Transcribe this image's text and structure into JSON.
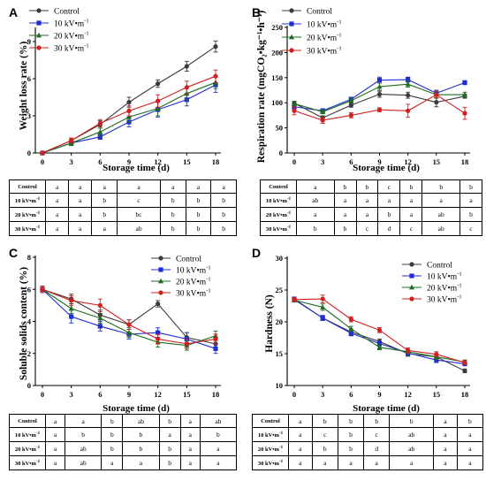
{
  "x": [
    "0",
    "3",
    "6",
    "9",
    "12",
    "15",
    "18"
  ],
  "xlabel": "Storage time (d)",
  "legend": [
    "Control",
    "10 kV•m",
    "20 kV•m",
    "30 kV•m"
  ],
  "legend_sup": "-1",
  "colors": {
    "control": "#3a3a3a",
    "kv10": "#1f2fcf",
    "kv20": "#1f6b1f",
    "kv30": "#d11f1f"
  },
  "row_labels": [
    "Control",
    "10 kV•m",
    "20 kV•m",
    "30 kV•m"
  ],
  "row_sup": "-1",
  "panels": [
    {
      "letter": "A",
      "ylabel": "Weight loss rate (%)",
      "yticks": [
        "0",
        "3",
        "6",
        "9"
      ],
      "letters": [
        [
          "a",
          "a",
          "a",
          "a",
          "a",
          "a",
          "a"
        ],
        [
          "a",
          "a",
          "b",
          "c",
          "b",
          "b",
          "b"
        ],
        [
          "a",
          "a",
          "b",
          "bc",
          "b",
          "b",
          "b"
        ],
        [
          "a",
          "a",
          "a",
          "ab",
          "b",
          "b",
          "b"
        ]
      ]
    },
    {
      "letter": "B",
      "ylabel": "Respiration rate (mgCO₂•kg⁻¹•h⁻¹)",
      "yticks": [
        "0",
        "50",
        "100",
        "150",
        "200",
        "250"
      ],
      "letters": [
        [
          "a",
          "b",
          "b",
          "c",
          "b",
          "b",
          "b"
        ],
        [
          "ab",
          "a",
          "a",
          "a",
          "a",
          "a",
          "a"
        ],
        [
          "a",
          "a",
          "a",
          "b",
          "a",
          "ab",
          "b"
        ],
        [
          "b",
          "b",
          "c",
          "d",
          "c",
          "ab",
          "c"
        ]
      ]
    },
    {
      "letter": "C",
      "ylabel": "Soluble solids content (%)",
      "yticks": [
        "0",
        "2",
        "4",
        "6",
        "8"
      ],
      "letters": [
        [
          "a",
          "a",
          "b",
          "ab",
          "b",
          "a",
          "ab"
        ],
        [
          "a",
          "b",
          "b",
          "b",
          "a",
          "a",
          "b"
        ],
        [
          "a",
          "ab",
          "b",
          "b",
          "b",
          "a",
          "a"
        ],
        [
          "a",
          "ab",
          "a",
          "a",
          "b",
          "a",
          "a"
        ]
      ]
    },
    {
      "letter": "D",
      "ylabel": "Hardness (N)",
      "yticks": [
        "10",
        "15",
        "20",
        "25",
        "30"
      ],
      "letters": [
        [
          "a",
          "b",
          "b",
          "b",
          "b",
          "a",
          "b"
        ],
        [
          "a",
          "c",
          "b",
          "c",
          "ab",
          "a",
          "a"
        ],
        [
          "a",
          "b",
          "b",
          "d",
          "ab",
          "a",
          "a"
        ],
        [
          "a",
          "a",
          "a",
          "a",
          "a",
          "a",
          "a"
        ]
      ]
    }
  ],
  "chart_data": [
    {
      "type": "line",
      "title": "",
      "xlabel": "Storage time (d)",
      "ylabel": "Weight loss rate (%)",
      "x": [
        0,
        3,
        6,
        9,
        12,
        15,
        18
      ],
      "ylim": [
        0,
        10
      ],
      "legend_position": "top-left",
      "series": [
        {
          "name": "Control",
          "values": [
            0,
            1.0,
            2.3,
            4.1,
            5.6,
            7.0,
            8.6
          ],
          "err": [
            0.1,
            0.2,
            0.3,
            0.4,
            0.3,
            0.4,
            0.45
          ]
        },
        {
          "name": "10 kV•m-1",
          "values": [
            0,
            0.8,
            1.3,
            2.5,
            3.5,
            4.3,
            5.5
          ],
          "err": [
            0.1,
            0.2,
            0.2,
            0.4,
            0.6,
            0.5,
            0.6
          ]
        },
        {
          "name": "20 kV•m-1",
          "values": [
            0,
            0.8,
            1.7,
            2.9,
            3.6,
            4.8,
            5.7
          ],
          "err": [
            0.1,
            0.2,
            0.3,
            0.4,
            0.6,
            0.5,
            0.5
          ]
        },
        {
          "name": "30 kV•m-1",
          "values": [
            0,
            1.0,
            2.4,
            3.4,
            4.2,
            5.3,
            6.2
          ],
          "err": [
            0.1,
            0.2,
            0.3,
            0.4,
            0.5,
            0.5,
            0.5
          ]
        }
      ]
    },
    {
      "type": "line",
      "title": "",
      "xlabel": "Storage time (d)",
      "ylabel": "Respiration rate (mgCO₂•kg⁻¹•h⁻¹)",
      "x": [
        0,
        3,
        6,
        9,
        12,
        15,
        18
      ],
      "ylim": [
        0,
        250
      ],
      "legend_position": "top-left",
      "series": [
        {
          "name": "Control",
          "values": [
            99,
            70,
            95,
            117,
            115,
            101,
            113
          ],
          "err": [
            4,
            4,
            4,
            6,
            6,
            9,
            4
          ]
        },
        {
          "name": "10 kV•m-1",
          "values": [
            92,
            84,
            107,
            145,
            146,
            119,
            140
          ],
          "err": [
            5,
            4,
            4,
            6,
            5,
            6,
            4
          ]
        },
        {
          "name": "20 kV•m-1",
          "values": [
            98,
            82,
            104,
            132,
            137,
            116,
            116
          ],
          "err": [
            5,
            4,
            4,
            7,
            6,
            7,
            5
          ]
        },
        {
          "name": "30 kV•m-1",
          "values": [
            84,
            65,
            75,
            86,
            84,
            116,
            79
          ],
          "err": [
            8,
            6,
            5,
            4,
            13,
            6,
            12
          ]
        }
      ]
    },
    {
      "type": "line",
      "title": "",
      "xlabel": "Storage time (d)",
      "ylabel": "Soluble solids content (%)",
      "x": [
        0,
        3,
        6,
        9,
        12,
        15,
        18
      ],
      "ylim": [
        0,
        8
      ],
      "legend_position": "top-right",
      "series": [
        {
          "name": "Control",
          "values": [
            6.0,
            5.4,
            4.4,
            3.8,
            5.1,
            3.0,
            2.6
          ],
          "err": [
            0.2,
            0.3,
            0.3,
            0.3,
            0.2,
            0.3,
            0.4
          ]
        },
        {
          "name": "10 kV•m-1",
          "values": [
            6.0,
            4.3,
            3.7,
            3.2,
            3.3,
            2.9,
            2.3
          ],
          "err": [
            0.2,
            0.4,
            0.3,
            0.3,
            0.3,
            0.4,
            0.3
          ]
        },
        {
          "name": "20 kV•m-1",
          "values": [
            6.0,
            4.8,
            4.2,
            3.3,
            2.7,
            2.5,
            3.1
          ],
          "err": [
            0.2,
            0.3,
            0.3,
            0.3,
            0.3,
            0.3,
            0.3
          ]
        },
        {
          "name": "30 kV•m-1",
          "values": [
            6.0,
            5.3,
            5.0,
            3.8,
            2.9,
            2.6,
            2.9
          ],
          "err": [
            0.2,
            0.3,
            0.4,
            0.3,
            0.3,
            0.3,
            0.3
          ]
        }
      ]
    },
    {
      "type": "line",
      "title": "",
      "xlabel": "Storage time (d)",
      "ylabel": "Hardness (N)",
      "x": [
        0,
        3,
        6,
        9,
        12,
        15,
        18
      ],
      "ylim": [
        10,
        30
      ],
      "legend_position": "top-right",
      "series": [
        {
          "name": "Control",
          "values": [
            23.5,
            20.6,
            18.4,
            16.9,
            15.0,
            14.5,
            12.3
          ],
          "err": [
            0.3,
            0.4,
            0.5,
            0.4,
            0.4,
            0.4,
            0.3
          ]
        },
        {
          "name": "10 kV•m-1",
          "values": [
            23.6,
            20.6,
            18.2,
            16.6,
            15.1,
            14.0,
            13.4
          ],
          "err": [
            0.3,
            0.4,
            0.4,
            0.4,
            0.4,
            0.4,
            0.3
          ]
        },
        {
          "name": "20 kV•m-1",
          "values": [
            23.4,
            22.3,
            18.9,
            16.0,
            15.3,
            14.5,
            13.7
          ],
          "err": [
            0.3,
            0.5,
            0.4,
            0.4,
            0.3,
            0.4,
            0.3
          ]
        },
        {
          "name": "30 kV•m-1",
          "values": [
            23.5,
            23.6,
            20.4,
            18.7,
            15.5,
            14.9,
            13.6
          ],
          "err": [
            0.3,
            0.6,
            0.4,
            0.4,
            0.4,
            0.4,
            0.3
          ]
        }
      ]
    }
  ]
}
